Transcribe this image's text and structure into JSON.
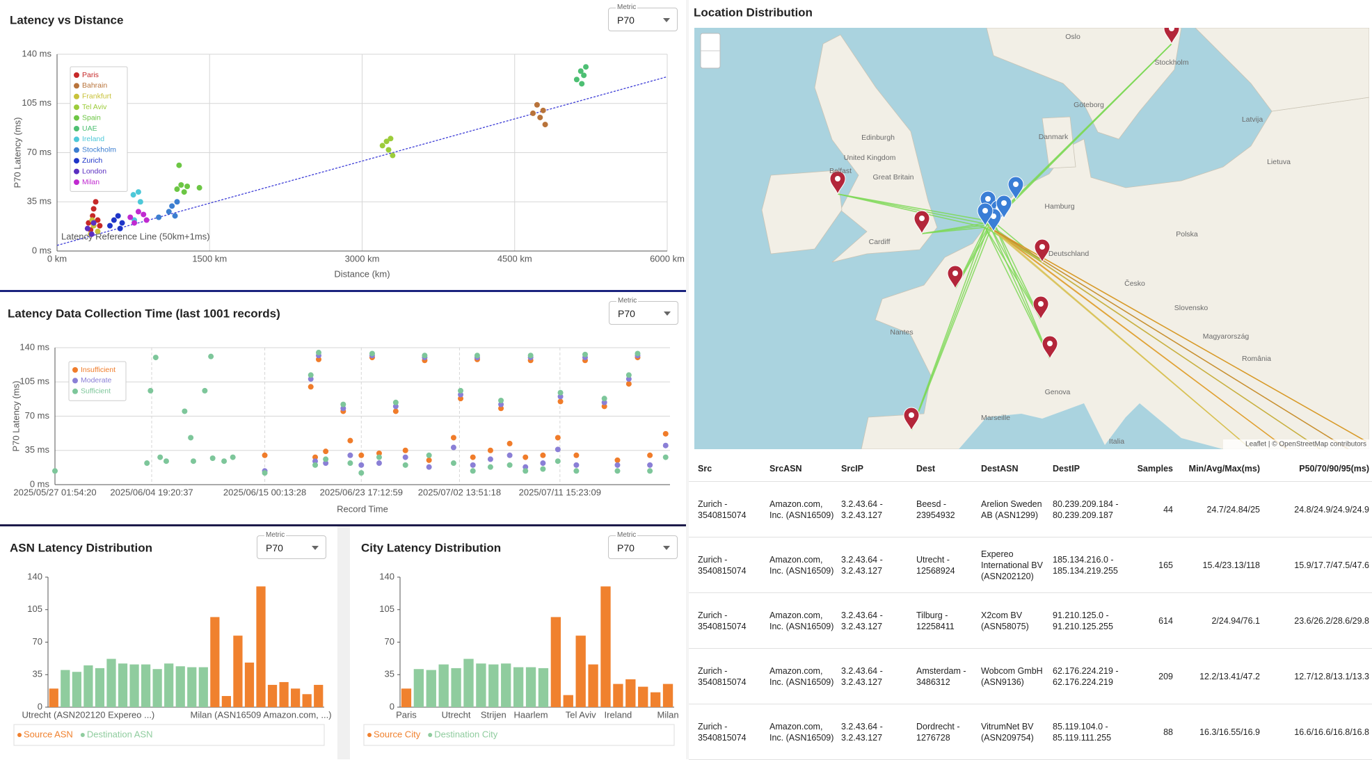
{
  "chart_data": [
    {
      "type": "scatter",
      "title": "Latency vs Distance",
      "metric_label": "Metric",
      "metric": "P70",
      "x_label": "Distance (km)",
      "y_label": "P70 Latency (ms)",
      "xlim": [
        0,
        6000
      ],
      "ylim": [
        0,
        140
      ],
      "xticks": [
        {
          "value": 0,
          "label": "0 km"
        },
        {
          "value": 1500,
          "label": "1500 km"
        },
        {
          "value": 3000,
          "label": "3000 km"
        },
        {
          "value": 4500,
          "label": "4500 km"
        },
        {
          "value": 6000,
          "label": "6000 km"
        }
      ],
      "yticks": [
        {
          "value": 0,
          "label": "0 ms"
        },
        {
          "value": 35,
          "label": "35 ms"
        },
        {
          "value": 70,
          "label": "70 ms"
        },
        {
          "value": 105,
          "label": "105 ms"
        },
        {
          "value": 140,
          "label": "140 ms"
        }
      ],
      "grid": true,
      "legend": "top-left",
      "reference_line": {
        "label": "Latency Reference Line (50km+1ms)",
        "color": "#3b3bd6",
        "x": [
          0,
          6000
        ],
        "values": [
          4,
          124
        ]
      },
      "series": [
        {
          "name": "Paris",
          "color": "#c62828",
          "x": [
            310,
            350,
            380,
            400,
            420,
            360,
            330
          ],
          "values": [
            20,
            25,
            35,
            22,
            18,
            30,
            15
          ]
        },
        {
          "name": "Bahrain",
          "color": "#b8733a",
          "x": [
            4680,
            4720,
            4750,
            4780,
            4800
          ],
          "values": [
            98,
            104,
            95,
            100,
            90
          ]
        },
        {
          "name": "Frankfurt",
          "color": "#c8c23a",
          "x": [
            330,
            360,
            400,
            345
          ],
          "values": [
            12,
            18,
            14,
            22
          ]
        },
        {
          "name": "Tel Aviv",
          "color": "#9ccc3a",
          "x": [
            3200,
            3240,
            3260,
            3280,
            3300
          ],
          "values": [
            75,
            78,
            72,
            80,
            68
          ]
        },
        {
          "name": "Spain",
          "color": "#6cc644",
          "x": [
            1180,
            1220,
            1250,
            1280,
            1200,
            1400
          ],
          "values": [
            44,
            47,
            42,
            46,
            61,
            45
          ]
        },
        {
          "name": "UAE",
          "color": "#4dbf73",
          "x": [
            5110,
            5150,
            5180,
            5200,
            5160
          ],
          "values": [
            122,
            128,
            125,
            131,
            119
          ]
        },
        {
          "name": "Ireland",
          "color": "#4dc8d8",
          "x": [
            750,
            800,
            820,
            760
          ],
          "values": [
            40,
            42,
            35,
            22
          ]
        },
        {
          "name": "Stockholm",
          "color": "#3c7ed0",
          "x": [
            1100,
            1130,
            1160,
            1180,
            1000
          ],
          "values": [
            28,
            32,
            25,
            35,
            24
          ]
        },
        {
          "name": "Zurich",
          "color": "#1e35c8",
          "x": [
            520,
            560,
            600,
            620,
            640
          ],
          "values": [
            18,
            22,
            25,
            16,
            20
          ]
        },
        {
          "name": "London",
          "color": "#5a2fc0",
          "x": [
            300,
            340,
            360
          ],
          "values": [
            16,
            12,
            20
          ]
        },
        {
          "name": "Milan",
          "color": "#c02ad0",
          "x": [
            720,
            760,
            800,
            850,
            880
          ],
          "values": [
            24,
            20,
            28,
            26,
            22
          ]
        }
      ]
    },
    {
      "type": "scatter",
      "title": "Latency Data Collection Time (last 1001 records)",
      "metric_label": "Metric",
      "metric": "P70",
      "x_label": "Record Time",
      "y_label": "P70 Latency (ms)",
      "xlim": [
        "2025/05/27 01:54:20",
        "2025/07/21 13:42:00"
      ],
      "ylim": [
        0,
        140
      ],
      "xticks": [
        "2025/05/27 01:54:20",
        "2025/06/04 19:20:37",
        "2025/06/15 00:13:28",
        "2025/06/23 17:12:59",
        "2025/07/02 13:51:18",
        "2025/07/11 15:23:09"
      ],
      "yticks": [
        {
          "value": 0,
          "label": "0 ms"
        },
        {
          "value": 35,
          "label": "35 ms"
        },
        {
          "value": 70,
          "label": "70 ms"
        },
        {
          "value": 105,
          "label": "105 ms"
        },
        {
          "value": 140,
          "label": "140 ms"
        }
      ],
      "grid": true,
      "legend": "top-left",
      "x": [
        "2025/05/27 01:54:20",
        "2025/06/04 09:06:00",
        "2025/06/04 16:48:00",
        "2025/06/05 04:06:00",
        "2025/06/05 13:42:00",
        "2025/06/06 02:54:00",
        "2025/06/07 18:42:00",
        "2025/06/08 07:54:00",
        "2025/06/08 13:42:00",
        "2025/06/09 14:24:00",
        "2025/06/10 03:36:00",
        "2025/06/10 07:24:00",
        "2025/06/11 08:06:00",
        "2025/06/12 03:06:00",
        "2025/06/15 00:13:28",
        "2025/06/19 03:54:00",
        "2025/06/19 13:24:00",
        "2025/06/19 20:54:00",
        "2025/06/20 12:12:00",
        "2025/06/22 02:06:00",
        "2025/06/22 17:18:00",
        "2025/06/23 17:12:59",
        "2025/06/24 16:48:00",
        "2025/06/25 07:54:00",
        "2025/06/26 19:54:00",
        "2025/06/27 16:48:00",
        "2025/06/29 10:30:00",
        "2025/06/29 19:54:00",
        "2025/07/02 01:06:00",
        "2025/07/02 16:18:00",
        "2025/07/03 18:54:00",
        "2025/07/04 04:18:00",
        "2025/07/05 08:54:00",
        "2025/07/06 07:42:00",
        "2025/07/07 02:36:00",
        "2025/07/08 12:42:00",
        "2025/07/08 23:54:00",
        "2025/07/10 02:36:00",
        "2025/07/11 10:54:00",
        "2025/07/11 16:30:00",
        "2025/07/13 02:54:00",
        "2025/07/13 21:54:00",
        "2025/07/15 15:36:00",
        "2025/07/16 19:54:00",
        "2025/07/17 20:36:00",
        "2025/07/18 15:36:00",
        "2025/07/19 18:12:00",
        "2025/07/21 04:18:00"
      ],
      "series": [
        {
          "name": "Insufficient",
          "color": "#f07c2a",
          "values": [
            null,
            null,
            null,
            null,
            null,
            null,
            null,
            null,
            null,
            null,
            null,
            null,
            null,
            null,
            30,
            100,
            28,
            128,
            34,
            75,
            45,
            30,
            130,
            32,
            75,
            35,
            127,
            25,
            48,
            88,
            28,
            128,
            35,
            78,
            42,
            28,
            127,
            30,
            48,
            85,
            30,
            127,
            80,
            25,
            103,
            130,
            30,
            52
          ]
        },
        {
          "name": "Moderate",
          "color": "#8a7fd6",
          "values": [
            null,
            null,
            null,
            null,
            null,
            null,
            null,
            null,
            null,
            null,
            null,
            null,
            null,
            null,
            14,
            108,
            24,
            132,
            22,
            78,
            30,
            20,
            132,
            22,
            80,
            28,
            130,
            18,
            38,
            92,
            20,
            130,
            26,
            82,
            30,
            18,
            130,
            22,
            36,
            90,
            20,
            130,
            84,
            20,
            108,
            132,
            20,
            40
          ]
        },
        {
          "name": "Sufficient",
          "color": "#7dc69a",
          "values": [
            14,
            22,
            96,
            130,
            28,
            24,
            75,
            48,
            24,
            96,
            131,
            27,
            24,
            28,
            12,
            112,
            20,
            135,
            26,
            82,
            22,
            12,
            134,
            28,
            84,
            20,
            132,
            30,
            22,
            96,
            14,
            132,
            18,
            86,
            20,
            14,
            132,
            16,
            24,
            94,
            14,
            133,
            88,
            14,
            112,
            134,
            14,
            28
          ]
        }
      ]
    },
    {
      "type": "bar",
      "title": "ASN Latency Distribution",
      "metric_label": "Metric",
      "metric": "P70",
      "ylim": [
        0,
        140
      ],
      "yticks": [
        0,
        35,
        70,
        105,
        140
      ],
      "grid": false,
      "legend": "bottom",
      "categories": [
        null,
        null,
        null,
        "Utrecht (ASN202120 Expereo ...)",
        null,
        null,
        null,
        null,
        null,
        null,
        null,
        null,
        null,
        null,
        null,
        null,
        null,
        null,
        "Milan (ASN16509 Amazon.com, ...)",
        null,
        null,
        null,
        null,
        null
      ],
      "series": [
        {
          "name": "Source ASN",
          "color": "#f0812e",
          "values": [
            20,
            null,
            null,
            null,
            null,
            null,
            null,
            null,
            null,
            null,
            null,
            null,
            null,
            null,
            97,
            12,
            77,
            48,
            130,
            24,
            27,
            20,
            14,
            24
          ]
        },
        {
          "name": "Destination ASN",
          "color": "#8fcc9e",
          "values": [
            null,
            40,
            38,
            45,
            42,
            52,
            47,
            46,
            46,
            41,
            47,
            44,
            43,
            43,
            null,
            null,
            null,
            null,
            null,
            null,
            null,
            null,
            null,
            null
          ]
        }
      ]
    },
    {
      "type": "bar",
      "title": "City Latency Distribution",
      "metric_label": "Metric",
      "metric": "P70",
      "ylim": [
        0,
        140
      ],
      "yticks": [
        0,
        35,
        70,
        105,
        140
      ],
      "grid": false,
      "legend": "bottom",
      "categories": [
        "Paris",
        null,
        null,
        null,
        "Utrecht",
        null,
        null,
        "Strijen",
        null,
        null,
        "Haarlem",
        null,
        null,
        null,
        "Tel Aviv",
        null,
        null,
        "Ireland",
        null,
        null,
        null,
        "Milan"
      ],
      "series": [
        {
          "name": "Source City",
          "color": "#f0812e",
          "values": [
            20,
            null,
            null,
            null,
            null,
            null,
            null,
            null,
            null,
            null,
            null,
            null,
            97,
            13,
            77,
            46,
            130,
            25,
            30,
            22,
            16,
            25
          ]
        },
        {
          "name": "Destination City",
          "color": "#8fcc9e",
          "values": [
            null,
            41,
            40,
            46,
            42,
            52,
            47,
            46,
            47,
            43,
            43,
            42,
            null,
            null,
            null,
            null,
            null,
            null,
            null,
            null,
            null,
            null
          ]
        }
      ]
    }
  ],
  "map": {
    "title": "Location Distribution",
    "labels": [
      "Oslo",
      "Stockholm",
      "Göteborg",
      "Danmark",
      "Edinburgh",
      "United Kingdom",
      "Great Britain",
      "Belfast",
      "Cardiff",
      "Hamburg",
      "Deutschland",
      "Polska",
      "Česko",
      "Slovensko",
      "Magyarország",
      "Latvija",
      "Lietuva",
      "Nantes",
      "Marseille",
      "Genova",
      "România",
      "Italia"
    ],
    "attribution": "Leaflet | © OpenStreetMap contributors"
  },
  "table": {
    "columns": [
      "Src",
      "SrcASN",
      "SrcIP",
      "Dest",
      "DestASN",
      "DestIP",
      "Samples",
      "Min/Avg/Max(ms)",
      "P50/70/90/95(ms)"
    ],
    "rows": [
      [
        "Zurich - 3540815074",
        "Amazon.com, Inc. (ASN16509)",
        "3.2.43.64 - 3.2.43.127",
        "Beesd - 23954932",
        "Arelion Sweden AB (ASN1299)",
        "80.239.209.184 - 80.239.209.187",
        "44",
        "24.7/24.84/25",
        "24.8/24.9/24.9/24.9"
      ],
      [
        "Zurich - 3540815074",
        "Amazon.com, Inc. (ASN16509)",
        "3.2.43.64 - 3.2.43.127",
        "Utrecht - 12568924",
        "Expereo International BV (ASN202120)",
        "185.134.216.0 - 185.134.219.255",
        "165",
        "15.4/23.13/118",
        "15.9/17.7/47.5/47.6"
      ],
      [
        "Zurich - 3540815074",
        "Amazon.com, Inc. (ASN16509)",
        "3.2.43.64 - 3.2.43.127",
        "Tilburg - 12258411",
        "X2com BV (ASN58075)",
        "91.210.125.0 - 91.210.125.255",
        "614",
        "2/24.94/76.1",
        "23.6/26.2/28.6/29.8"
      ],
      [
        "Zurich - 3540815074",
        "Amazon.com, Inc. (ASN16509)",
        "3.2.43.64 - 3.2.43.127",
        "Amsterdam - 3486312",
        "Wobcom GmbH (ASN9136)",
        "62.176.224.219 - 62.176.224.219",
        "209",
        "12.2/13.41/47.2",
        "12.7/12.8/13.1/13.3"
      ],
      [
        "Zurich - 3540815074",
        "Amazon.com, Inc. (ASN16509)",
        "3.2.43.64 - 3.2.43.127",
        "Dordrecht - 1276728",
        "VitrumNet BV (ASN209754)",
        "85.119.104.0 - 85.119.111.255",
        "88",
        "16.3/16.55/16.9",
        "16.6/16.6/16.8/16.8"
      ]
    ]
  }
}
